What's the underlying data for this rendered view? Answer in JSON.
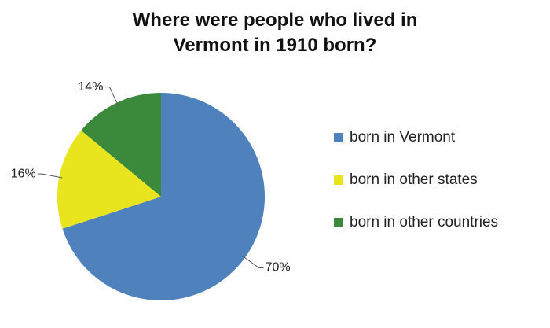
{
  "chart_data": {
    "type": "pie",
    "title": "Where were people who lived in Vermont in 1910 born?",
    "categories": [
      "born in Vermont",
      "born in other states",
      "born in other countries"
    ],
    "values": [
      70,
      16,
      14
    ],
    "value_labels": [
      "70%",
      "16%",
      "14%"
    ],
    "colors": [
      "#4f81bd",
      "#e8e41e",
      "#3b8a3b"
    ],
    "legend": "right"
  }
}
